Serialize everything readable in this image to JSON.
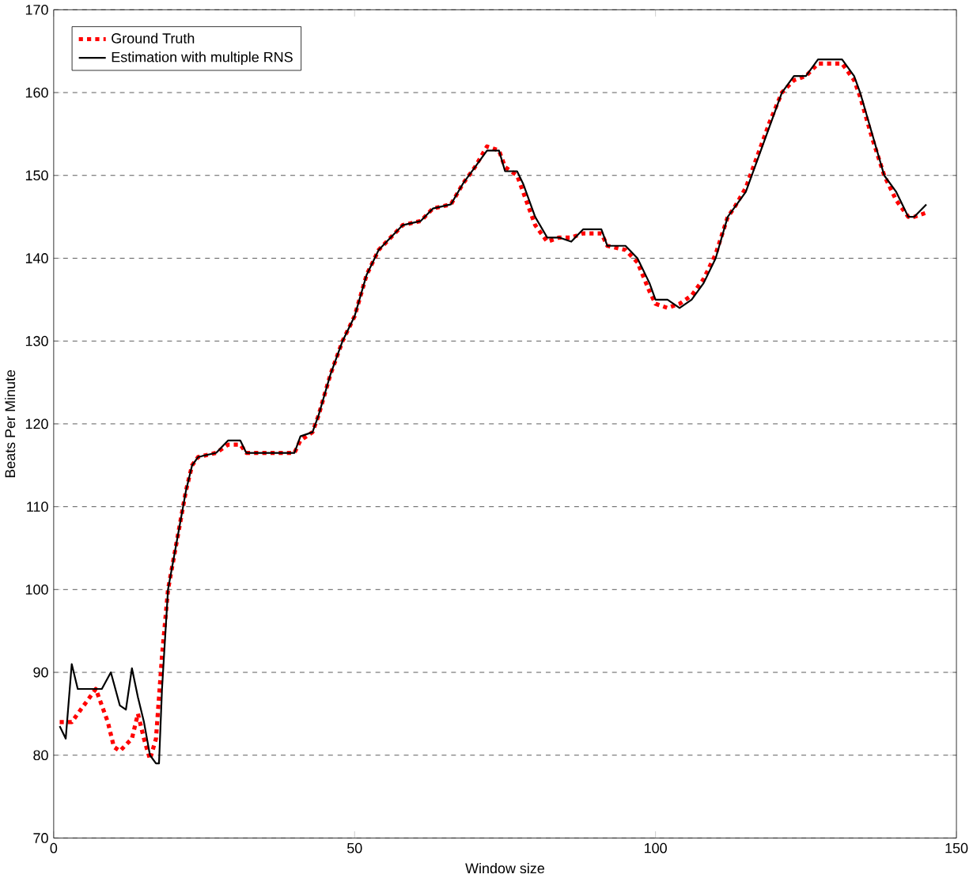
{
  "chart_data": {
    "type": "line",
    "xlabel": "Window size",
    "ylabel": "Beats Per Minute",
    "xlim": [
      0,
      150
    ],
    "ylim": [
      70,
      170
    ],
    "xticks": [
      0,
      50,
      100,
      150
    ],
    "yticks": [
      70,
      80,
      90,
      100,
      110,
      120,
      130,
      140,
      150,
      160,
      170
    ],
    "grid": "y",
    "legend": "top left",
    "series": [
      {
        "name": "Ground Truth",
        "color": "#ff0000",
        "line_style": "dotted",
        "x": [
          1,
          3,
          5,
          7,
          9,
          10,
          11,
          13,
          14,
          15,
          16,
          17,
          18,
          19,
          20,
          21,
          22,
          23,
          24,
          27,
          29,
          31,
          32,
          36,
          40,
          41,
          43,
          44,
          46,
          48,
          50,
          52,
          54,
          56,
          58,
          61,
          63,
          66,
          68,
          70,
          72,
          74,
          75,
          77,
          78,
          80,
          82,
          84,
          86,
          88,
          91,
          92,
          95,
          97,
          99,
          100,
          102,
          104,
          106,
          108,
          110,
          112,
          113,
          115,
          117,
          119,
          121,
          123,
          125,
          127,
          130,
          131,
          133,
          134,
          136,
          138,
          140,
          142,
          143,
          145
        ],
        "values": [
          84,
          84,
          86,
          88,
          84,
          81,
          80.5,
          82,
          85,
          82,
          79.5,
          82,
          92,
          100,
          104,
          108,
          112,
          115,
          116,
          116.5,
          117.5,
          117.5,
          116.5,
          116.5,
          116.5,
          118,
          119,
          121,
          126,
          130,
          133,
          138,
          141,
          142.5,
          144,
          144.5,
          146,
          146.5,
          149,
          151,
          153.5,
          153,
          151,
          150,
          148,
          144,
          142,
          142.5,
          142.5,
          143,
          143,
          141.5,
          141,
          139.5,
          136,
          134.5,
          134,
          134.5,
          135.5,
          137.5,
          140.5,
          145,
          146,
          148.5,
          152.5,
          156.5,
          160,
          161.5,
          162,
          163.5,
          163.5,
          163.5,
          161.5,
          159.5,
          154.5,
          150,
          147,
          145,
          145,
          145.5
        ]
      },
      {
        "name": "Estimation with multiple RNS",
        "color": "#000000",
        "line_style": "solid",
        "x": [
          1,
          2,
          3,
          4,
          6,
          8,
          9.5,
          11,
          12,
          13,
          14,
          15,
          16,
          17,
          17.5,
          18,
          19,
          20,
          21,
          22,
          23,
          24,
          27,
          29,
          31,
          32,
          36,
          40,
          41,
          43,
          44,
          46,
          48,
          50,
          52,
          54,
          56,
          58,
          61,
          63,
          66,
          68,
          70,
          72,
          74,
          75,
          77,
          78,
          80,
          82,
          84,
          86,
          88,
          91,
          92,
          95,
          97,
          99,
          100,
          102,
          104,
          106,
          108,
          110,
          112,
          113,
          115,
          117,
          119,
          121,
          123,
          125,
          127,
          130,
          131,
          133,
          134,
          136,
          138,
          140,
          142,
          143,
          145
        ],
        "values": [
          83.5,
          82,
          91,
          88,
          88,
          88,
          90,
          86,
          85.5,
          90.5,
          87,
          84,
          80,
          79,
          79,
          88,
          100,
          104,
          108,
          112,
          115,
          116,
          116.5,
          118,
          118,
          116.5,
          116.5,
          116.5,
          118.5,
          119,
          121,
          126,
          130,
          133,
          138,
          141,
          142.5,
          144,
          144.5,
          146,
          146.5,
          149,
          151,
          153,
          153,
          150.5,
          150.5,
          149,
          145,
          142.5,
          142.5,
          142,
          143.5,
          143.5,
          141.5,
          141.5,
          140,
          137,
          135,
          135,
          134,
          135,
          137,
          140,
          145,
          146,
          148,
          152,
          156,
          160,
          162,
          162,
          164,
          164,
          164,
          162,
          160,
          155,
          150,
          148,
          145,
          145,
          146.5
        ]
      }
    ]
  }
}
